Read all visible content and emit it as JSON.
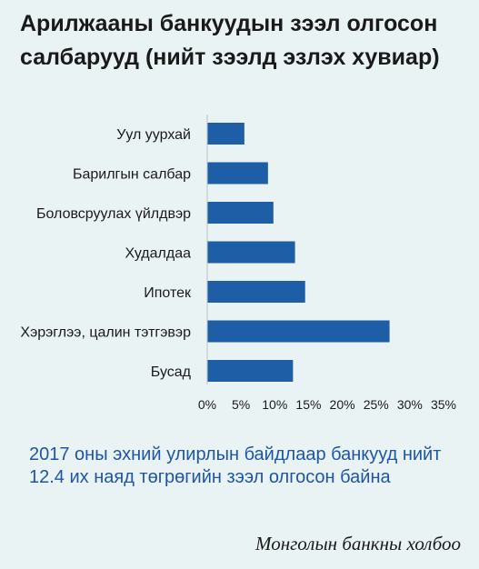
{
  "header": {
    "title": "Арилжааны банкуудын зээл олгосон салбарууд (нийт зээлд эзлэх хувиар)"
  },
  "chart_data": {
    "type": "bar",
    "orientation": "horizontal",
    "categories": [
      "Уул уурхай",
      "Барилгын салбар",
      "Боловсруулах үйлдвэр",
      "Худалдаа",
      "Ипотек",
      "Хэрэглээ, цалин тэтгэвэр",
      "Бусад"
    ],
    "values": [
      5.5,
      9.0,
      9.8,
      13.0,
      14.5,
      27.0,
      12.7
    ],
    "xticks": [
      "0%",
      "5%",
      "10%",
      "15%",
      "20%",
      "25%",
      "30%",
      "35%"
    ],
    "xlim": [
      0,
      35
    ],
    "grid": false,
    "bar_color": "#1d5ea6"
  },
  "note": {
    "text": "2017 оны эхний улирлын байдлаар банкууд нийт 12.4 их наяд төгрөгийн зээл олгосон байна"
  },
  "source": {
    "text": "Монголын банкны холбоо"
  }
}
